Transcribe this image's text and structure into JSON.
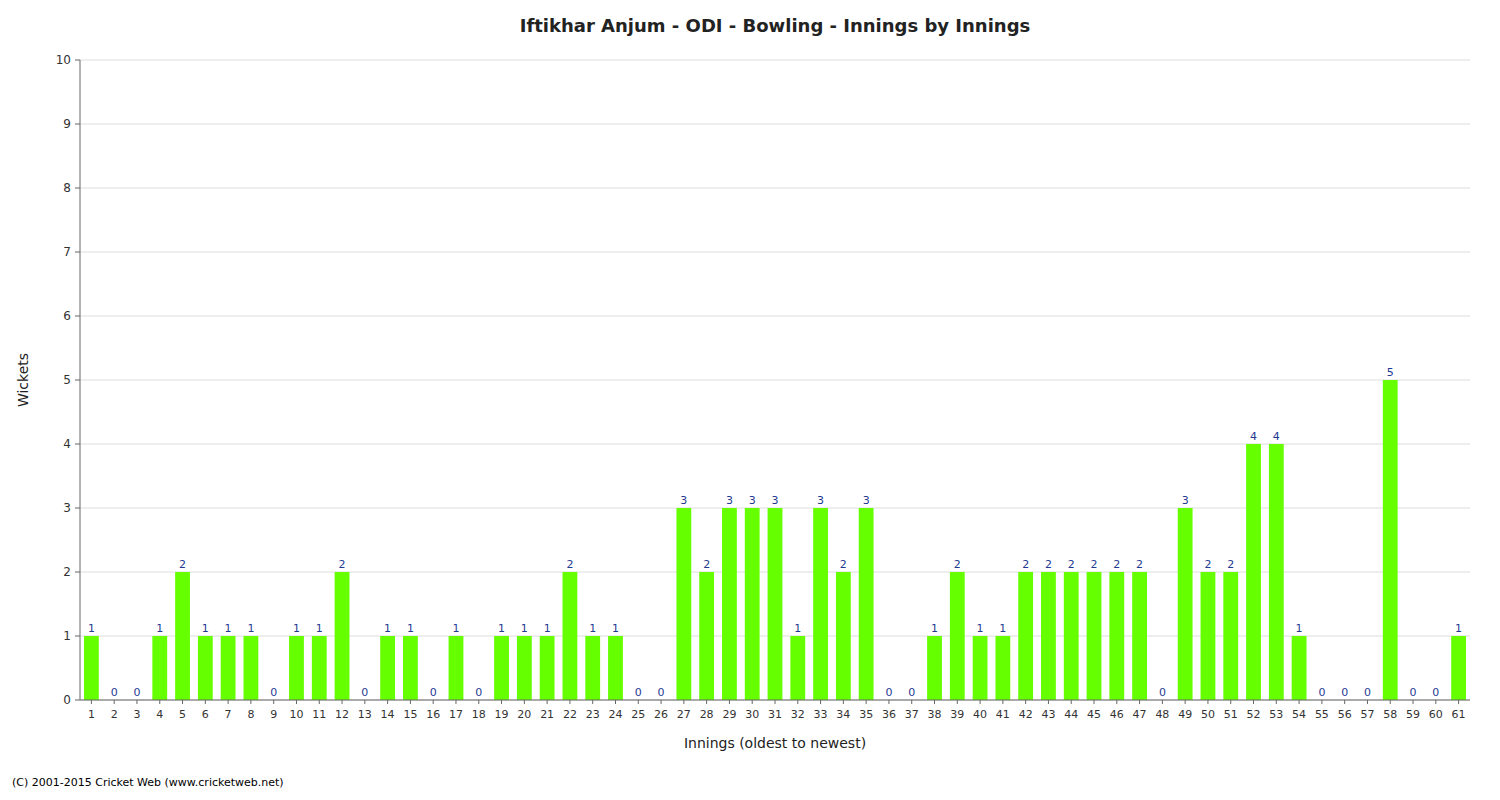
{
  "chart_data": {
    "type": "bar",
    "title": "Iftikhar Anjum - ODI - Bowling - Innings by Innings",
    "x_label": "Innings (oldest to newest)",
    "y_label": "Wickets",
    "categories": [
      "1",
      "2",
      "3",
      "4",
      "5",
      "6",
      "7",
      "8",
      "9",
      "10",
      "11",
      "12",
      "13",
      "14",
      "15",
      "16",
      "17",
      "18",
      "19",
      "20",
      "21",
      "22",
      "23",
      "24",
      "25",
      "26",
      "27",
      "28",
      "29",
      "30",
      "31",
      "32",
      "33",
      "34",
      "35",
      "36",
      "37",
      "38",
      "39",
      "40",
      "41",
      "42",
      "43",
      "44",
      "45",
      "46",
      "47",
      "48",
      "49",
      "50",
      "51",
      "52",
      "53",
      "54",
      "55",
      "56",
      "57",
      "58",
      "59",
      "60",
      "61"
    ],
    "values": [
      1,
      0,
      0,
      1,
      2,
      1,
      1,
      1,
      0,
      1,
      1,
      2,
      0,
      1,
      1,
      0,
      1,
      0,
      1,
      1,
      1,
      2,
      1,
      1,
      0,
      0,
      3,
      2,
      3,
      3,
      3,
      1,
      3,
      2,
      3,
      0,
      0,
      1,
      2,
      1,
      1,
      2,
      2,
      2,
      2,
      2,
      2,
      0,
      3,
      2,
      2,
      4,
      4,
      1,
      0,
      0,
      0,
      5,
      0,
      0,
      1
    ],
    "color": "#66ff00",
    "ylim": [
      0,
      10
    ],
    "yticks": [
      0,
      1,
      2,
      3,
      4,
      5,
      6,
      7,
      8,
      9,
      10
    ],
    "grid": true,
    "data_labels": true,
    "annotations": [
      "(C) 2001-2015 Cricket Web (www.cricketweb.net)"
    ]
  }
}
